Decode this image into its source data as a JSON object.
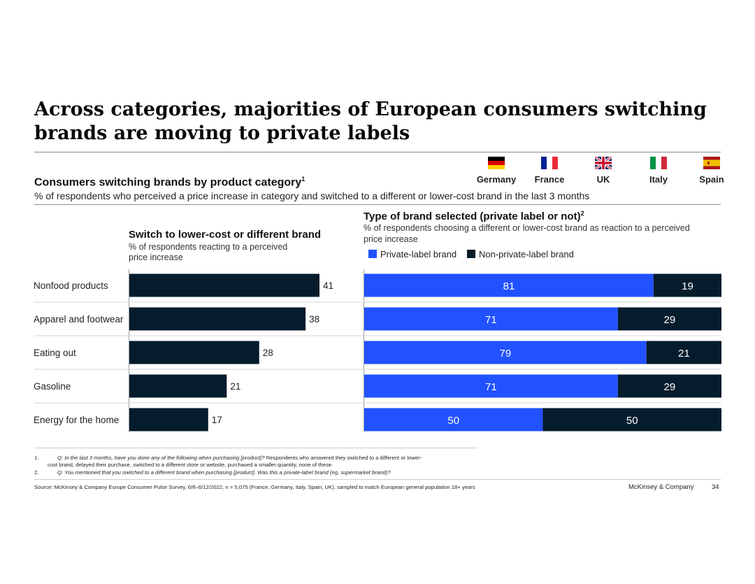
{
  "title": "Across categories, majorities of European consumers switching brands are moving to private labels",
  "subtitle": "Consumers switching brands by product category",
  "subtitle_sup": "1",
  "subtitle_desc": "% of respondents who perceived a price increase in category and switched to a different or lower-cost brand in the last 3 months",
  "countries": [
    {
      "name": "Germany",
      "flag": "germany-flag-icon"
    },
    {
      "name": "France",
      "flag": "france-flag-icon"
    },
    {
      "name": "UK",
      "flag": "uk-flag-icon"
    },
    {
      "name": "Italy",
      "flag": "italy-flag-icon"
    },
    {
      "name": "Spain",
      "flag": "spain-flag-icon"
    }
  ],
  "left_panel": {
    "heading": "Switch to lower-cost or different brand",
    "desc_line1": "% of respondents reacting to a perceived",
    "desc_line2": "price increase"
  },
  "right_panel": {
    "heading": "Type of brand selected (private label or not)",
    "heading_sup": "2",
    "desc_line1": "% of respondents choosing a different or lower-cost brand as reaction to a perceived",
    "desc_line2": "price increase",
    "legend": [
      {
        "label": "Private-label brand",
        "color": "#2251ff"
      },
      {
        "label": "Non-private-label brand",
        "color": "#051c2c"
      }
    ]
  },
  "chart_data": [
    {
      "type": "bar",
      "orientation": "horizontal",
      "title": "Switch to lower-cost or different brand",
      "categories": [
        "Nonfood products",
        "Apparel and footwear",
        "Eating out",
        "Gasoline",
        "Energy for the home"
      ],
      "values": [
        41,
        38,
        28,
        21,
        17
      ],
      "unit": "%",
      "xlim": [
        0,
        41
      ],
      "color": "#051c2c"
    },
    {
      "type": "bar",
      "orientation": "horizontal",
      "stacked": true,
      "title": "Type of brand selected (private label or not)",
      "categories": [
        "Nonfood products",
        "Apparel and footwear",
        "Eating out",
        "Gasoline",
        "Energy for the home"
      ],
      "series": [
        {
          "name": "Private-label brand",
          "values": [
            81,
            71,
            79,
            71,
            50
          ],
          "color": "#2251ff"
        },
        {
          "name": "Non-private-label brand",
          "values": [
            19,
            29,
            21,
            29,
            50
          ],
          "color": "#051c2c"
        }
      ],
      "xlim": [
        0,
        100
      ]
    }
  ],
  "footnotes": [
    {
      "num": "1.",
      "text": "Q: In the last 3 months, have you done any of the following when purchasing [product]? Respondents who answered they switched to a different or lower-cost brand, delayed their purchase, switched to a different store or website, purchased a smaller quantity, none of these."
    },
    {
      "num": "2.",
      "text": "Q: You mentioned that you switched to a different brand when purchasing [product]. Was this a private-label brand (eg, supermarket brand)?"
    }
  ],
  "footnote1": {
    "num": "1.",
    "italic": "Q: In the last 3 months, have you done any of the following when purchasing [product]?",
    "rest_line1": " Respondents who answered they switched to a different or lower-",
    "line2": "cost brand, delayed their purchase, switched to a different store or website, purchased a smaller quantity, none of these."
  },
  "footnote2": {
    "num": "2.",
    "italic": "Q: You mentioned that you switched to a different brand when purchasing [product]. Was this a private-label brand (eg, supermarket brand)?"
  },
  "source": "Source: McKinsey & Company Europe Consumer Pulse Survey, 6/8–6/12/2022, n = 5,075 (France, Germany, Italy, Spain, UK), sampled to match European general population 18+ years",
  "brand": "McKinsey & Company",
  "page_number": "34"
}
